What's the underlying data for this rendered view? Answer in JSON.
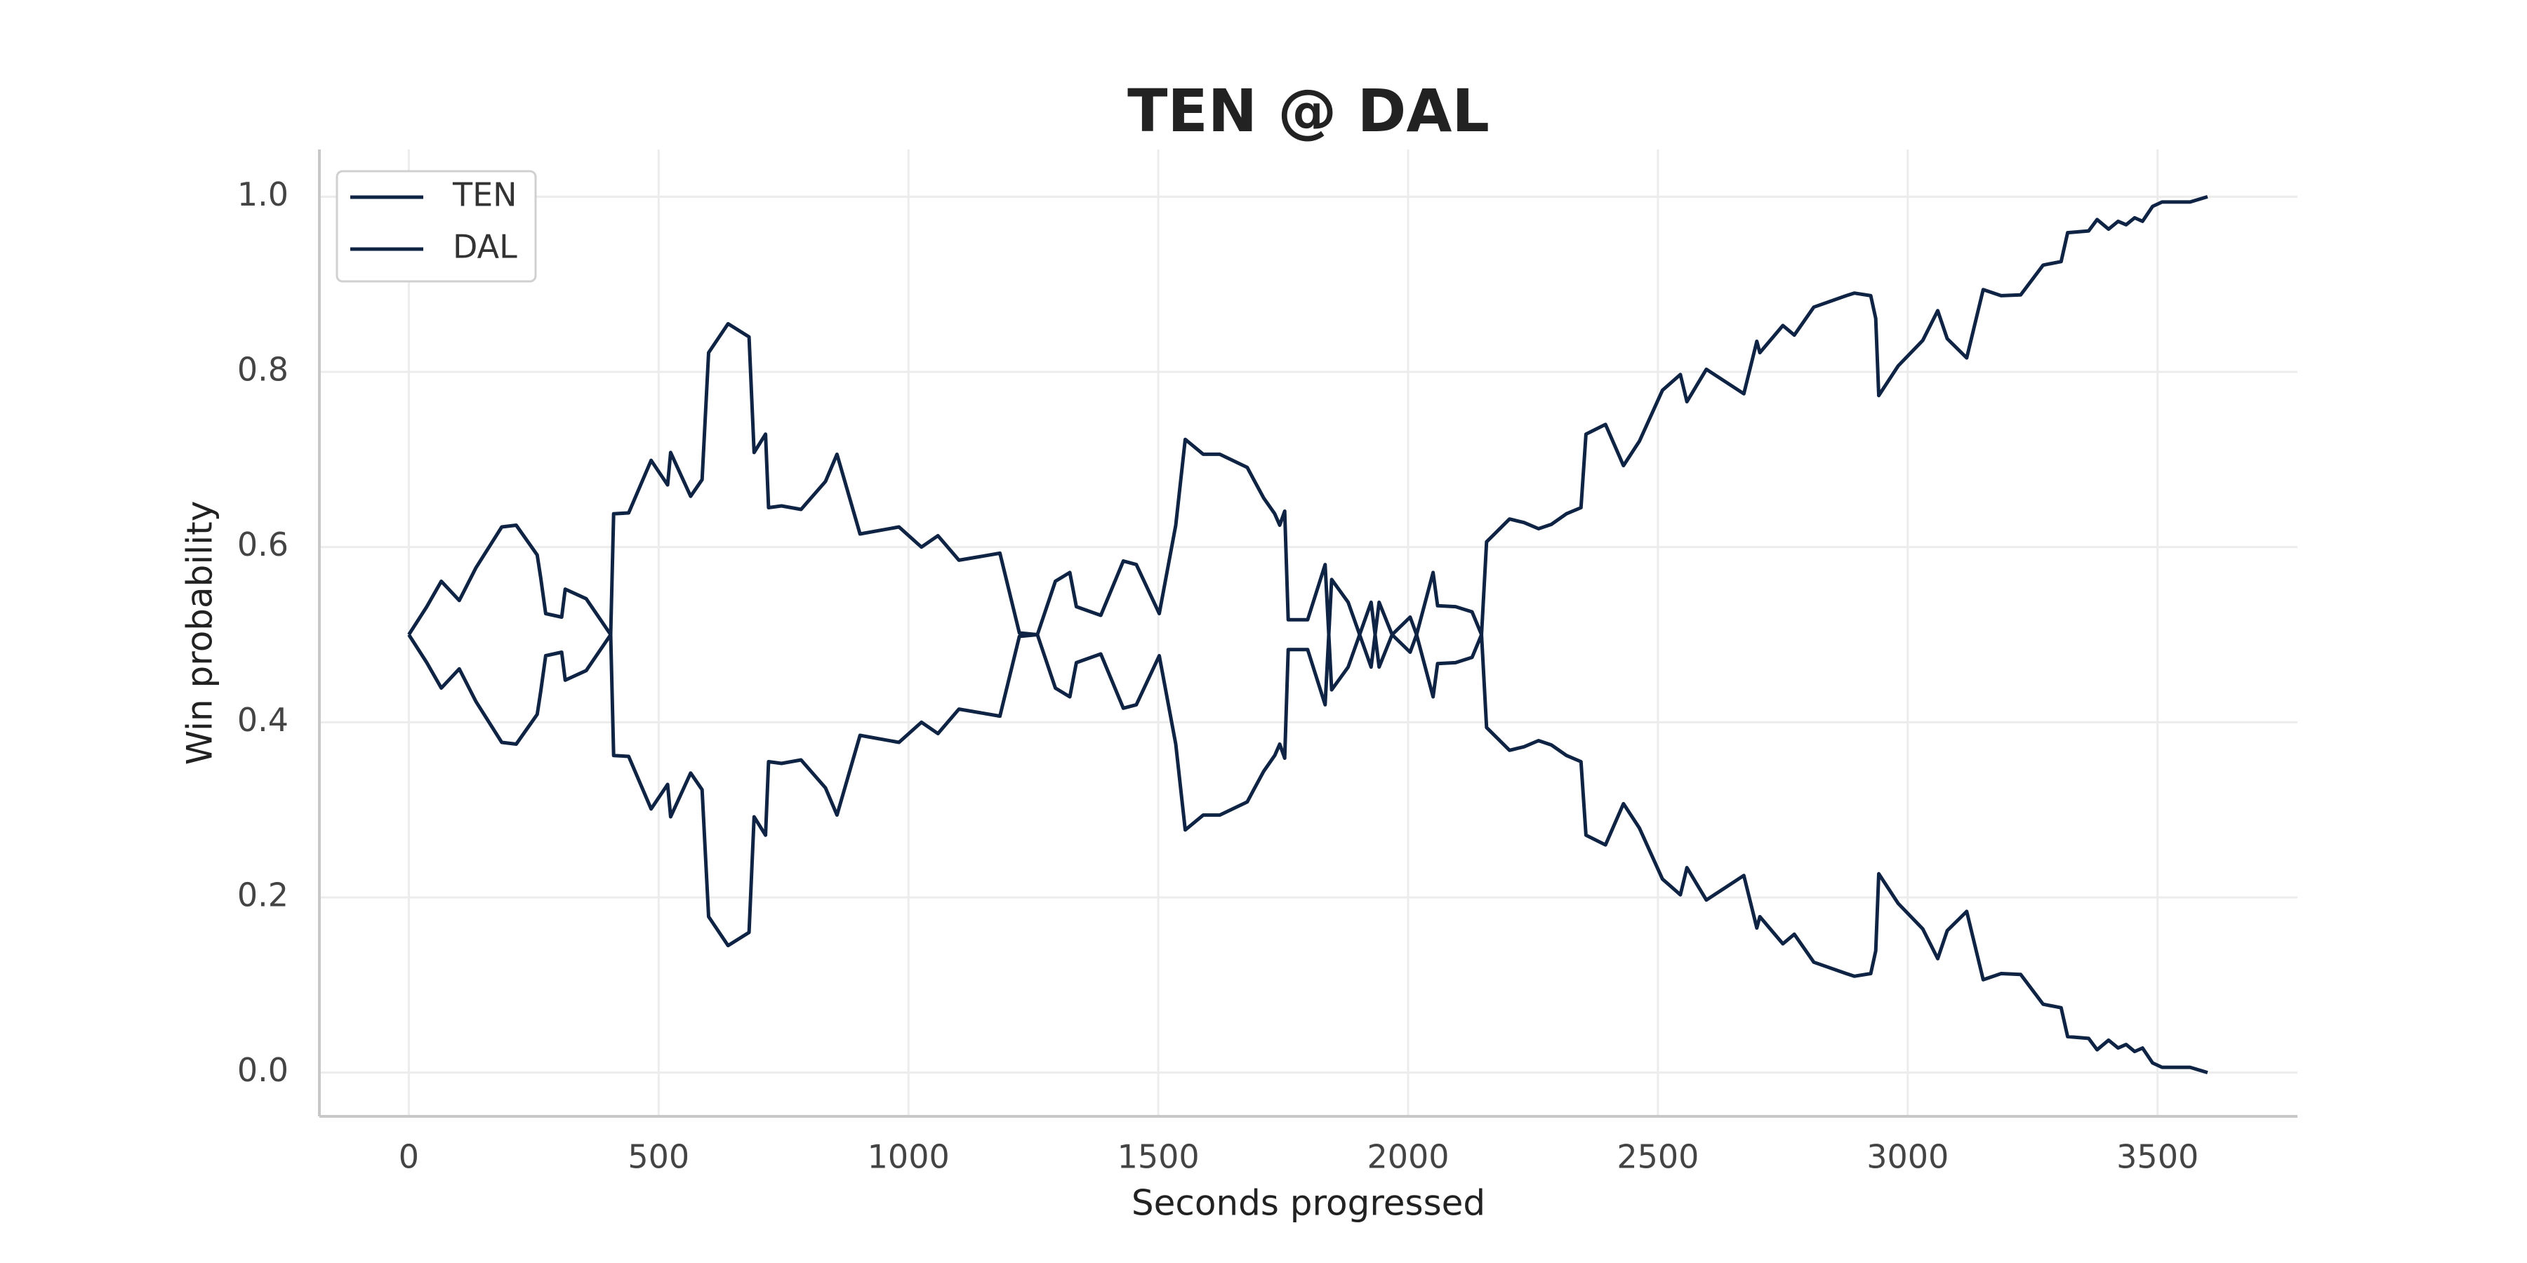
{
  "chart_data": {
    "type": "line",
    "title": "TEN @ DAL",
    "xlabel": "Seconds progressed",
    "ylabel": "Win probability",
    "x": [
      0,
      36,
      65,
      101,
      134,
      186,
      215,
      257,
      264,
      274,
      306,
      313,
      355,
      404,
      410,
      440,
      485,
      518,
      524,
      564,
      587,
      600,
      639,
      681,
      691,
      714,
      720,
      746,
      785,
      834,
      857,
      903,
      981,
      1026,
      1059,
      1101,
      1183,
      1222,
      1258,
      1294,
      1323,
      1336,
      1385,
      1430,
      1456,
      1502,
      1535,
      1554,
      1590,
      1623,
      1678,
      1691,
      1711,
      1733,
      1743,
      1753,
      1760,
      1799,
      1834,
      1847,
      1880,
      1926,
      1942,
      1968,
      2004,
      2017,
      2050,
      2059,
      2095,
      2128,
      2147,
      2157,
      2203,
      2232,
      2261,
      2287,
      2317,
      2346,
      2356,
      2395,
      2431,
      2463,
      2509,
      2545,
      2558,
      2597,
      2672,
      2698,
      2704,
      2750,
      2773,
      2812,
      2877,
      2893,
      2926,
      2936,
      2942,
      2981,
      3030,
      3060,
      3079,
      3118,
      3151,
      3187,
      3226,
      3271,
      3307,
      3320,
      3362,
      3379,
      3402,
      3421,
      3437,
      3454,
      3470,
      3490,
      3509,
      3565,
      3600
    ],
    "series": [
      {
        "name": "TEN",
        "color": "#0f2444",
        "values": [
          0.5,
          0.532,
          0.561,
          0.539,
          0.576,
          0.623,
          0.625,
          0.591,
          0.565,
          0.524,
          0.52,
          0.552,
          0.541,
          0.5,
          0.638,
          0.639,
          0.699,
          0.671,
          0.708,
          0.658,
          0.677,
          0.822,
          0.855,
          0.84,
          0.708,
          0.729,
          0.645,
          0.647,
          0.643,
          0.675,
          0.706,
          0.615,
          0.623,
          0.6,
          0.613,
          0.585,
          0.593,
          0.502,
          0.5,
          0.561,
          0.571,
          0.532,
          0.522,
          0.584,
          0.58,
          0.524,
          0.625,
          0.723,
          0.706,
          0.706,
          0.691,
          0.677,
          0.656,
          0.638,
          0.625,
          0.641,
          0.517,
          0.517,
          0.58,
          0.437,
          0.463,
          0.537,
          0.463,
          0.5,
          0.52,
          0.5,
          0.571,
          0.533,
          0.532,
          0.526,
          0.5,
          0.606,
          0.632,
          0.628,
          0.621,
          0.626,
          0.638,
          0.645,
          0.729,
          0.74,
          0.693,
          0.721,
          0.779,
          0.797,
          0.766,
          0.803,
          0.775,
          0.835,
          0.822,
          0.853,
          0.842,
          0.874,
          0.887,
          0.89,
          0.887,
          0.861,
          0.773,
          0.807,
          0.836,
          0.87,
          0.838,
          0.816,
          0.894,
          0.887,
          0.888,
          0.922,
          0.926,
          0.959,
          0.961,
          0.974,
          0.963,
          0.972,
          0.968,
          0.976,
          0.972,
          0.989,
          0.994,
          0.994,
          1.0
        ]
      },
      {
        "name": "DAL",
        "color": "#0f2444",
        "values": [
          0.5,
          0.468,
          0.439,
          0.461,
          0.424,
          0.377,
          0.375,
          0.409,
          0.435,
          0.476,
          0.48,
          0.448,
          0.459,
          0.5,
          0.362,
          0.361,
          0.301,
          0.329,
          0.292,
          0.342,
          0.323,
          0.178,
          0.145,
          0.16,
          0.292,
          0.271,
          0.355,
          0.353,
          0.357,
          0.325,
          0.294,
          0.385,
          0.377,
          0.4,
          0.387,
          0.415,
          0.407,
          0.498,
          0.5,
          0.439,
          0.429,
          0.468,
          0.478,
          0.416,
          0.42,
          0.476,
          0.375,
          0.277,
          0.294,
          0.294,
          0.309,
          0.323,
          0.344,
          0.362,
          0.375,
          0.359,
          0.483,
          0.483,
          0.42,
          0.563,
          0.537,
          0.463,
          0.537,
          0.5,
          0.48,
          0.5,
          0.429,
          0.467,
          0.468,
          0.474,
          0.5,
          0.394,
          0.368,
          0.372,
          0.379,
          0.374,
          0.362,
          0.355,
          0.271,
          0.26,
          0.307,
          0.279,
          0.221,
          0.203,
          0.234,
          0.197,
          0.225,
          0.165,
          0.178,
          0.147,
          0.158,
          0.126,
          0.113,
          0.11,
          0.113,
          0.139,
          0.227,
          0.193,
          0.164,
          0.13,
          0.162,
          0.184,
          0.106,
          0.113,
          0.112,
          0.078,
          0.074,
          0.041,
          0.039,
          0.026,
          0.037,
          0.028,
          0.032,
          0.024,
          0.028,
          0.011,
          0.006,
          0.006,
          0.0
        ]
      }
    ],
    "xlim": [
      -179,
      3780
    ],
    "ylim": [
      -0.05,
      1.054
    ],
    "xticks": [
      0,
      500,
      1000,
      1500,
      2000,
      2500,
      3000,
      3500
    ],
    "yticks": [
      {
        "value": 0,
        "label": "0.0"
      },
      0.2,
      0.4,
      0.6,
      0.8,
      {
        "value": 1,
        "label": "1.0"
      }
    ],
    "grid": true,
    "legend": "upper left"
  }
}
